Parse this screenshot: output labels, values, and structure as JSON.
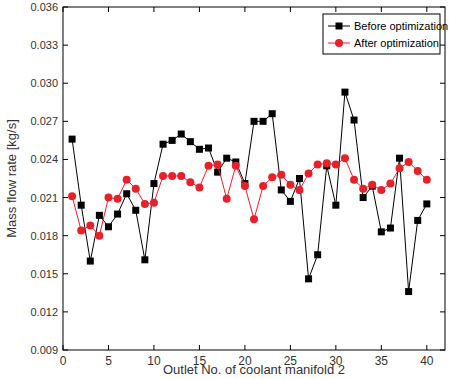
{
  "chart_data": {
    "type": "line",
    "x_label": "Outlet No. of coolant manifold 2",
    "y_label": "Mass flow rate [kg/s]",
    "x": [
      1,
      2,
      3,
      4,
      5,
      6,
      7,
      8,
      9,
      10,
      11,
      12,
      13,
      14,
      15,
      16,
      17,
      18,
      19,
      20,
      21,
      22,
      23,
      24,
      25,
      26,
      27,
      28,
      29,
      30,
      31,
      32,
      33,
      34,
      35,
      36,
      37,
      38,
      39,
      40
    ],
    "series": [
      {
        "name": "Before optimization",
        "color": "#000000",
        "marker": "square",
        "values": [
          0.0256,
          0.0204,
          0.016,
          0.0196,
          0.0187,
          0.0197,
          0.0213,
          0.02,
          0.0161,
          0.0221,
          0.0252,
          0.0255,
          0.026,
          0.0254,
          0.0248,
          0.0249,
          0.023,
          0.0241,
          0.0238,
          0.0221,
          0.027,
          0.027,
          0.0276,
          0.0216,
          0.0207,
          0.0225,
          0.0146,
          0.0165,
          0.0235,
          0.0204,
          0.0293,
          0.0271,
          0.021,
          0.0219,
          0.0183,
          0.0186,
          0.0241,
          0.0136,
          0.0192,
          0.0205
        ]
      },
      {
        "name": "After optimization",
        "color": "#e8202a",
        "marker": "circle",
        "values": [
          0.0211,
          0.0184,
          0.0188,
          0.018,
          0.021,
          0.0209,
          0.0224,
          0.0217,
          0.0205,
          0.0206,
          0.0227,
          0.0227,
          0.0227,
          0.0222,
          0.0218,
          0.0235,
          0.0236,
          0.0209,
          0.0235,
          0.0219,
          0.0193,
          0.0219,
          0.0226,
          0.0228,
          0.022,
          0.0216,
          0.0229,
          0.0236,
          0.0237,
          0.0236,
          0.0241,
          0.0224,
          0.0217,
          0.022,
          0.0216,
          0.0221,
          0.0233,
          0.0238,
          0.0231,
          0.0224
        ]
      }
    ],
    "xlim": [
      0,
      42
    ],
    "xticks": [
      0,
      5,
      10,
      15,
      20,
      25,
      30,
      35,
      40
    ],
    "ylim": [
      0.009,
      0.036
    ],
    "yticks": [
      0.009,
      0.012,
      0.015,
      0.018,
      0.021,
      0.024,
      0.027,
      {
        "value": 0.03,
        "label": "0.030"
      },
      0.033,
      0.036
    ],
    "legend": "upper right",
    "grid": false
  }
}
